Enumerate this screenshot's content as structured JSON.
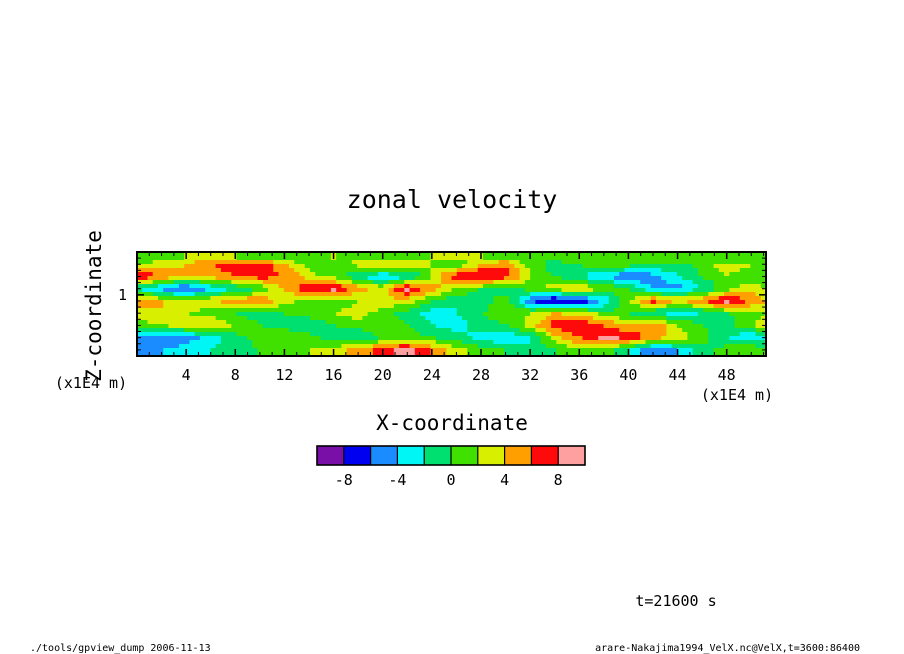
{
  "chart_data": {
    "type": "heatmap",
    "title": "zonal velocity",
    "xlabel": "X-coordinate",
    "ylabel": "Z-coordinate",
    "x_unit": "(x1E4 m)",
    "y_unit": "(x1E4 m)",
    "xlim": [
      0,
      51.2
    ],
    "ylim": [
      0,
      1.7
    ],
    "x_ticks": [
      4,
      8,
      12,
      16,
      20,
      24,
      28,
      32,
      36,
      40,
      44,
      48
    ],
    "y_ticks": [
      1
    ],
    "colorbar": {
      "levels": [
        -10,
        -8,
        -6,
        -4,
        -2,
        0,
        2,
        4,
        6,
        8,
        10
      ],
      "tick_labels": [
        "-8",
        "-4",
        "0",
        "4",
        "8"
      ],
      "tick_values": [
        -8,
        -4,
        0,
        4,
        8
      ],
      "colors": [
        "#7a0fa8",
        "#0000f0",
        "#1a8cff",
        "#00f5f5",
        "#00e070",
        "#40e000",
        "#d8f000",
        "#ffa000",
        "#ff0a0a",
        "#ffa0a0"
      ]
    },
    "field": {
      "description_source": "visual estimate",
      "x": [
        0,
        2,
        4,
        6,
        8,
        10,
        12,
        14,
        16,
        18,
        20,
        22,
        24,
        26,
        28,
        30,
        32,
        34,
        36,
        38,
        40,
        42,
        44,
        46,
        48,
        50,
        51.2
      ],
      "z": [
        0.1,
        0.3,
        0.5,
        0.7,
        0.9,
        1.1,
        1.3,
        1.5,
        1.6
      ],
      "values": [
        [
          -5,
          -4,
          -3,
          -2,
          -1,
          0,
          1,
          2,
          3,
          5,
          7,
          9,
          6,
          3,
          1,
          0,
          -2,
          0,
          2,
          1,
          -2,
          -6,
          -4,
          -1,
          1,
          2,
          1
        ],
        [
          -4,
          -6,
          -5,
          -3,
          -1,
          1,
          2,
          1,
          -1,
          -2,
          0,
          1,
          0,
          -1,
          -3,
          -4,
          -2,
          3,
          6,
          9,
          8,
          5,
          3,
          1,
          -2,
          -4,
          -3
        ],
        [
          1,
          2,
          3,
          4,
          2,
          0,
          -1,
          -2,
          0,
          1,
          2,
          0,
          -2,
          -3,
          -1,
          0,
          3,
          7,
          8,
          6,
          4,
          6,
          2,
          0,
          -1,
          2,
          3
        ],
        [
          3,
          4,
          2,
          1,
          0,
          -1,
          0,
          1,
          2,
          3,
          1,
          -1,
          -3,
          -2,
          0,
          1,
          2,
          4,
          3,
          1,
          0,
          -2,
          -3,
          -2,
          0,
          1,
          2
        ],
        [
          6,
          4,
          3,
          4,
          5,
          6,
          3,
          1,
          0,
          2,
          4,
          3,
          0,
          -2,
          -1,
          1,
          -6,
          -9,
          -8,
          -4,
          2,
          7,
          4,
          6,
          9,
          6,
          4
        ],
        [
          -2,
          -5,
          -7,
          -4,
          -2,
          0,
          4,
          8,
          9,
          5,
          3,
          9,
          5,
          2,
          0,
          -1,
          1,
          3,
          4,
          2,
          0,
          -4,
          -5,
          -2,
          1,
          3,
          2
        ],
        [
          8,
          6,
          4,
          5,
          6,
          7,
          6,
          3,
          1,
          -2,
          -4,
          -3,
          2,
          8,
          9,
          7,
          2,
          0,
          -2,
          -4,
          -6,
          -5,
          -2,
          0,
          2,
          1,
          0
        ],
        [
          2,
          3,
          4,
          6,
          7,
          8,
          4,
          1,
          0,
          3,
          5,
          4,
          2,
          0,
          4,
          6,
          1,
          -1,
          0,
          2,
          1,
          0,
          -1,
          1,
          3,
          2,
          1
        ],
        [
          0,
          1,
          2,
          3,
          2,
          1,
          0,
          1,
          2,
          1,
          0,
          1,
          2,
          3,
          2,
          1,
          0,
          1,
          2,
          1,
          0,
          1,
          2,
          1,
          0,
          1,
          1
        ]
      ]
    }
  },
  "annotation": {
    "time_label": "t=21600 s"
  },
  "footer": {
    "left": "./tools/gpview_dump 2006-11-13",
    "right": "arare-Nakajima1994_VelX.nc@VelX,t=3600:86400"
  }
}
